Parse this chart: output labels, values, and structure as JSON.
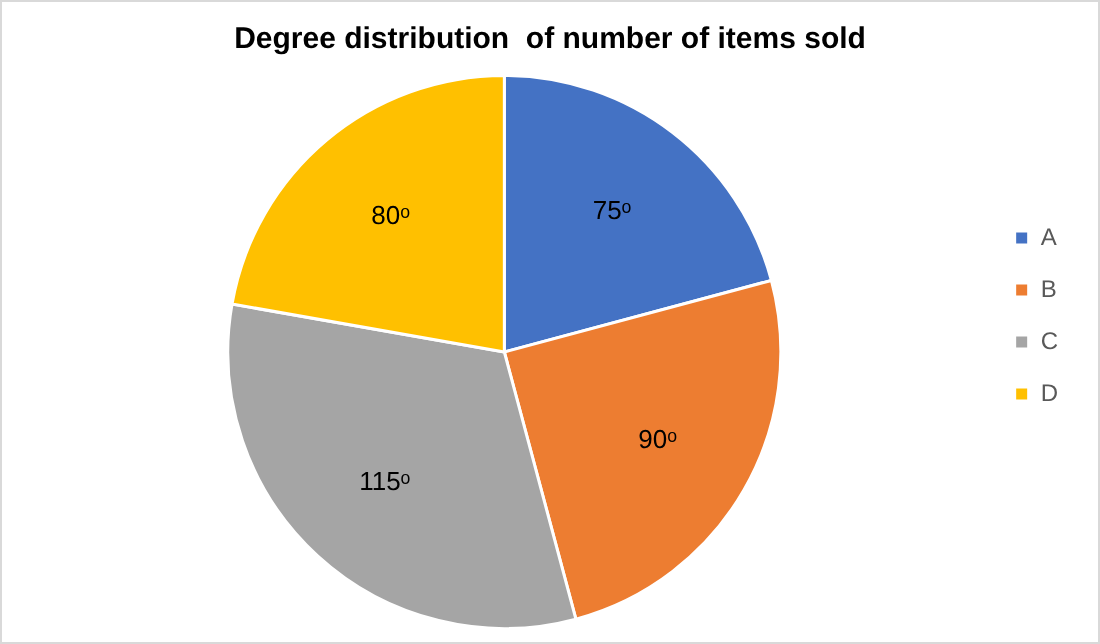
{
  "chart_data": {
    "type": "pie",
    "title": "Degree distribution  of number of items sold",
    "categories": [
      "A",
      "B",
      "C",
      "D"
    ],
    "values": [
      75,
      90,
      115,
      80
    ],
    "colors": [
      "#4472c4",
      "#ed7d31",
      "#a5a5a5",
      "#ffc000"
    ],
    "value_labels": [
      "75ᵒ",
      "90ᵒ",
      "115ᵒ",
      "80ᵒ"
    ],
    "legend": "right"
  }
}
